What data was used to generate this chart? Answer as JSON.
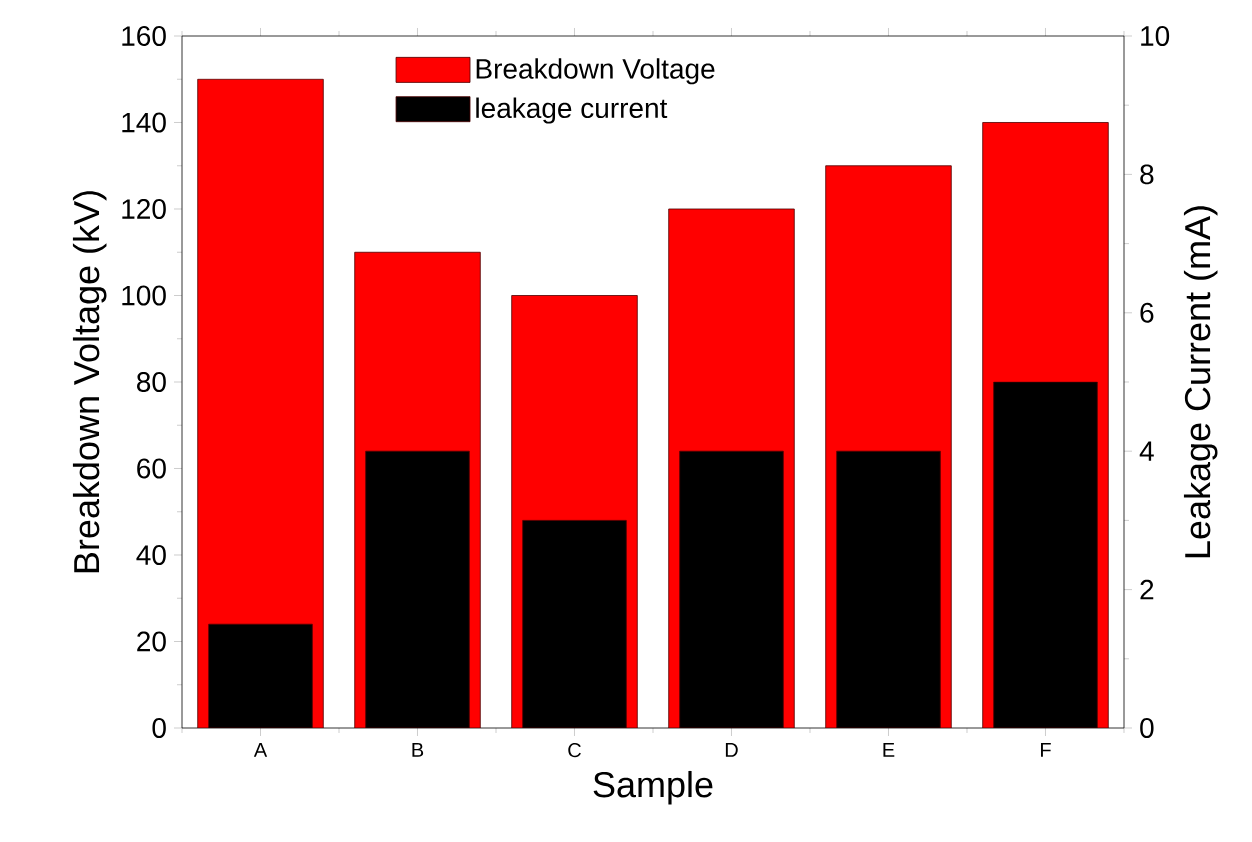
{
  "chart_data": {
    "type": "bar",
    "xlabel": "Sample",
    "ylabel": "Breakdown Voltage (kV)",
    "y2label": "Leakage Current (mA)",
    "categories": [
      "A",
      "B",
      "C",
      "D",
      "E",
      "F"
    ],
    "series": [
      {
        "name": "Breakdown Voltage",
        "color": "#ff0000",
        "values": [
          150,
          110,
          100,
          120,
          130,
          140
        ]
      },
      {
        "name": "leakage current",
        "color": "#000000",
        "values": [
          1.5,
          4,
          3,
          4,
          4,
          5
        ],
        "axis": "y2"
      }
    ],
    "ylim": [
      0,
      160
    ],
    "yticks": [
      0,
      20,
      40,
      60,
      80,
      100,
      120,
      140,
      160
    ],
    "y2lim": [
      0,
      10
    ],
    "y2ticks": [
      0,
      2,
      4,
      6,
      8,
      10
    ],
    "grid": false,
    "legend": "top"
  }
}
